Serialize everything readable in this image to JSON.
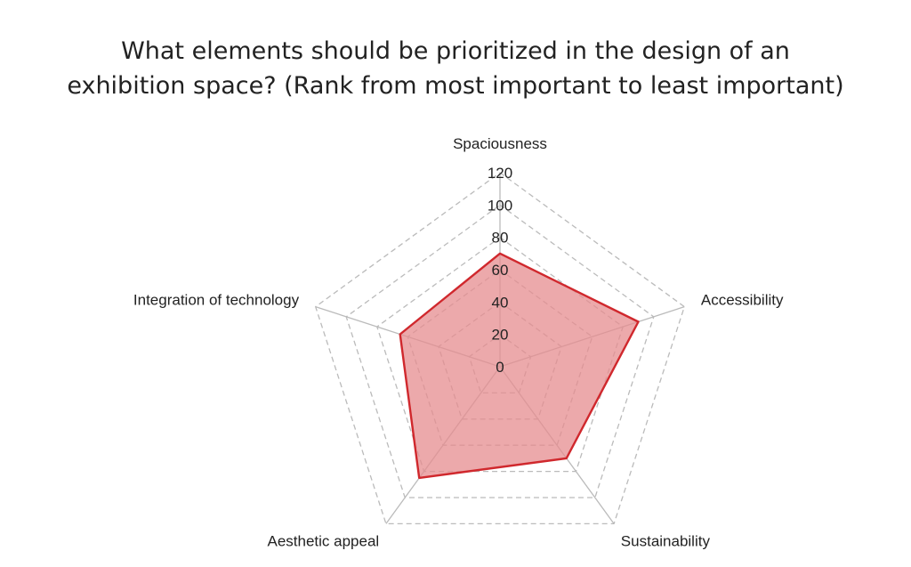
{
  "chart_data": {
    "type": "radar",
    "title_lines": [
      "What elements should be prioritized in the design of an",
      "exhibition space? (Rank from most important to least important)"
    ],
    "categories": [
      "Spaciousness",
      "Accessibility",
      "Sustainability",
      "Aesthetic appeal",
      "Integration of technology"
    ],
    "series": [
      {
        "values": [
          70,
          90,
          70,
          85,
          65
        ],
        "color": "#d0282d",
        "fill": "#e58c8f"
      }
    ],
    "rlim": [
      0,
      120
    ],
    "ticks": [
      0,
      20,
      40,
      60,
      80,
      100,
      120
    ],
    "grid": true
  }
}
